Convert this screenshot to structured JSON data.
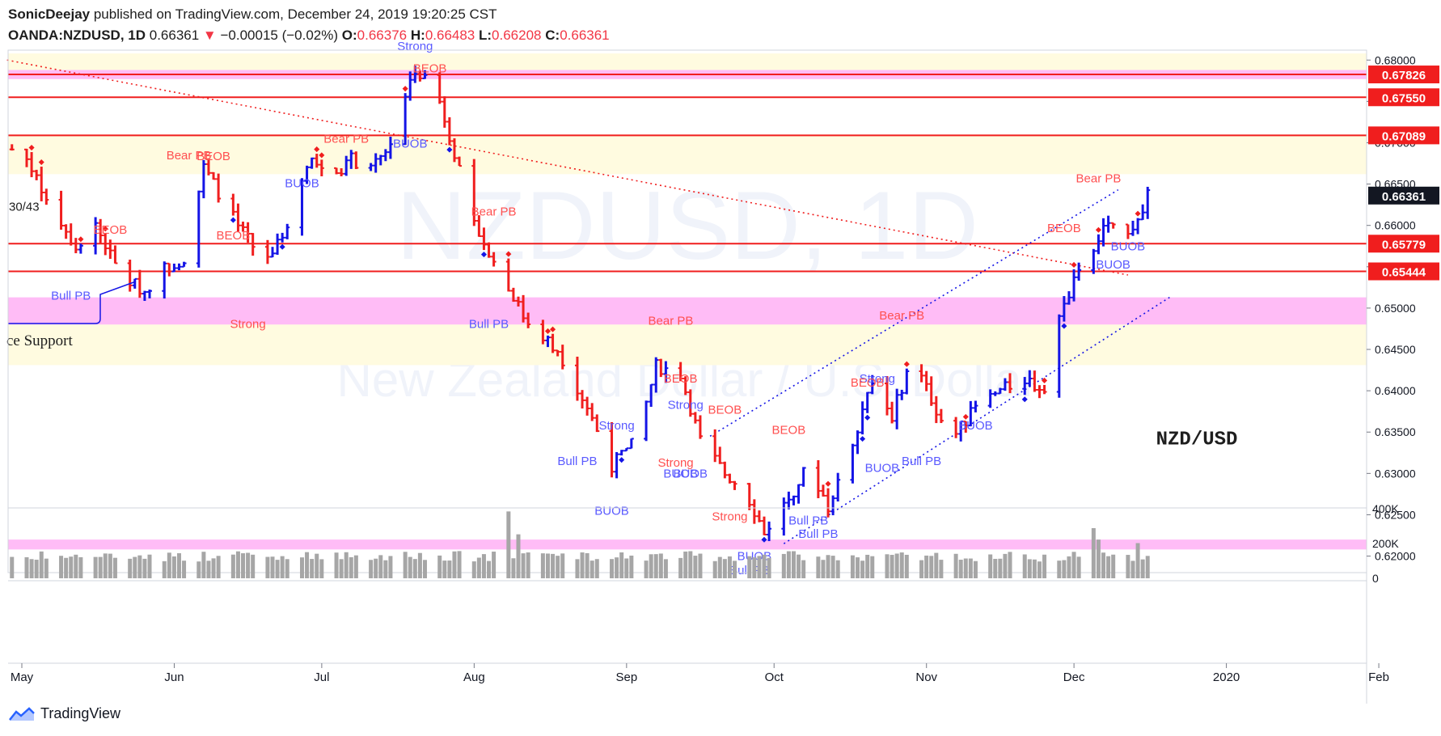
{
  "header": {
    "author": "SonicDeejay",
    "published_text": "published on TradingView.com, December 24, 2019 19:20:25 CST",
    "symbol": "OANDA:NZDUSD, 1D",
    "last": "0.66361",
    "change": "−0.00015 (−0.02%)",
    "o_label": "O:",
    "o_value": "0.66376",
    "h_label": "H:",
    "h_value": "0.66483",
    "l_label": "L:",
    "l_value": "0.66208",
    "c_label": "C:",
    "c_value": "0.66361"
  },
  "watermark": {
    "symbol": "NZDUSD, 1D",
    "name": "New Zealand Dollar / U.S. Dollar"
  },
  "footer": {
    "brand": "TradingView"
  },
  "colors": {
    "up": "#1414e6",
    "down": "#f01e1e",
    "hline": "#f01e1e",
    "pink_zone": "#ffb8f5",
    "yellow_zone": "#fffbe0"
  },
  "chart_data": {
    "type": "bar",
    "title": "NZD/USD",
    "price_range": [
      0.618,
      0.6812
    ],
    "price_ticks": [
      "0.68000",
      "0.67500",
      "0.67000",
      "0.66500",
      "0.66000",
      "0.65500",
      "0.65000",
      "0.64500",
      "0.64000",
      "0.63500",
      "0.63000",
      "0.62500",
      "0.62000"
    ],
    "time_labels": [
      {
        "label": "May",
        "day": 0
      },
      {
        "label": "Jun",
        "day": 31
      },
      {
        "label": "Jul",
        "day": 61
      },
      {
        "label": "Aug",
        "day": 92
      },
      {
        "label": "Sep",
        "day": 123
      },
      {
        "label": "Oct",
        "day": 153
      },
      {
        "label": "Nov",
        "day": 184
      },
      {
        "label": "Dec",
        "day": 214
      },
      {
        "label": "2020",
        "day": 245
      },
      {
        "label": "Feb",
        "day": 276
      }
    ],
    "level_lines": [
      {
        "price": 0.67826,
        "label": "0.67826"
      },
      {
        "price": 0.6755,
        "label": "0.67550"
      },
      {
        "price": 0.67089,
        "label": "0.67089"
      },
      {
        "price": 0.65779,
        "label": "0.65779"
      },
      {
        "price": 0.65444,
        "label": "0.65444"
      }
    ],
    "last_price": {
      "price": 0.66361,
      "label": "0.66361"
    },
    "zones": [
      {
        "type": "yellow",
        "from": 0.678,
        "to": 0.6808
      },
      {
        "type": "pink",
        "from": 0.6777,
        "to": 0.6788
      },
      {
        "type": "yellow",
        "from": 0.6662,
        "to": 0.671
      },
      {
        "type": "pink",
        "from": 0.648,
        "to": 0.6513
      },
      {
        "type": "yellow",
        "from": 0.6431,
        "to": 0.648
      },
      {
        "type": "pink",
        "from": 0.6208,
        "to": 0.622
      }
    ],
    "trend_lines": [
      {
        "from_day": -4,
        "from_price": 0.68,
        "to_day": 224,
        "to_price": 0.654,
        "color": "#f01e1e"
      },
      {
        "from_day": 139,
        "from_price": 0.6345,
        "to_day": 222,
        "to_price": 0.6643,
        "color": "#1414e6"
      },
      {
        "from_day": 154,
        "from_price": 0.6215,
        "to_day": 233,
        "to_price": 0.6515,
        "color": "#1414e6"
      }
    ],
    "markers": [
      {
        "text": "Strong",
        "day": 79,
        "price": 0.6812,
        "color": "#5a5aff"
      },
      {
        "text": "BEOB",
        "day": 82,
        "price": 0.6785,
        "color": "#ff5050"
      },
      {
        "text": "Bear PB",
        "day": 65,
        "price": 0.67,
        "color": "#ff5050"
      },
      {
        "text": "BUOB",
        "day": 78,
        "price": 0.6694,
        "color": "#5a5aff"
      },
      {
        "text": "Bear PB",
        "day": 33,
        "price": 0.668,
        "color": "#ff5050"
      },
      {
        "text": "BEOB",
        "day": 38,
        "price": 0.6679,
        "color": "#ff5050"
      },
      {
        "text": "BUOB",
        "day": 56,
        "price": 0.6646,
        "color": "#5a5aff"
      },
      {
        "text": "30/43",
        "day": 0,
        "price": 0.6618,
        "color": "#1e1e1e"
      },
      {
        "text": "BEOB",
        "day": 17,
        "price": 0.659,
        "color": "#ff5050"
      },
      {
        "text": "BEOB",
        "day": 42,
        "price": 0.6583,
        "color": "#ff5050"
      },
      {
        "text": "Bear PB",
        "day": 95,
        "price": 0.6612,
        "color": "#ff5050"
      },
      {
        "text": "Bull PB",
        "day": 9,
        "price": 0.651,
        "color": "#5a5aff"
      },
      {
        "text": "Strong",
        "day": 45,
        "price": 0.6476,
        "color": "#ff5050"
      },
      {
        "text": "Bull PB",
        "day": 94,
        "price": 0.6476,
        "color": "#5a5aff"
      },
      {
        "text": "ce Support",
        "day": 6,
        "price": 0.6455,
        "color": "#1e1e1e"
      },
      {
        "text": "Bear PB",
        "day": 131,
        "price": 0.648,
        "color": "#ff5050"
      },
      {
        "text": "Bear PB",
        "day": 178,
        "price": 0.6486,
        "color": "#ff5050"
      },
      {
        "text": "BEOB",
        "day": 133,
        "price": 0.641,
        "color": "#ff5050"
      },
      {
        "text": "Strong",
        "day": 173,
        "price": 0.641,
        "color": "#5a5aff"
      },
      {
        "text": "BEOB",
        "day": 171,
        "price": 0.6405,
        "color": "#ff5050"
      },
      {
        "text": "Strong",
        "day": 134,
        "price": 0.6378,
        "color": "#5a5aff"
      },
      {
        "text": "BEOB",
        "day": 142,
        "price": 0.6372,
        "color": "#ff5050"
      },
      {
        "text": "Strong",
        "day": 120,
        "price": 0.6353,
        "color": "#5a5aff"
      },
      {
        "text": "BEOB",
        "day": 155,
        "price": 0.6348,
        "color": "#ff5050"
      },
      {
        "text": "Bull PB",
        "day": 112,
        "price": 0.631,
        "color": "#5a5aff"
      },
      {
        "text": "BUOB",
        "day": 193,
        "price": 0.6353,
        "color": "#5a5aff"
      },
      {
        "text": "Bull PB",
        "day": 182,
        "price": 0.631,
        "color": "#5a5aff"
      },
      {
        "text": "BUOB",
        "day": 174,
        "price": 0.6302,
        "color": "#5a5aff"
      },
      {
        "text": "Strong",
        "day": 132,
        "price": 0.6308,
        "color": "#ff5050"
      },
      {
        "text": "BUOB",
        "day": 133,
        "price": 0.6295,
        "color": "#5a5aff"
      },
      {
        "text": "BUOB",
        "day": 135,
        "price": 0.6295,
        "color": "#5a5aff"
      },
      {
        "text": "BUOB",
        "day": 119,
        "price": 0.625,
        "color": "#5a5aff"
      },
      {
        "text": "Strong",
        "day": 143,
        "price": 0.6243,
        "color": "#ff5050"
      },
      {
        "text": "Bull PB",
        "day": 159,
        "price": 0.6238,
        "color": "#5a5aff"
      },
      {
        "text": "Bull PB",
        "day": 161,
        "price": 0.6222,
        "color": "#5a5aff"
      },
      {
        "text": "BUOB",
        "day": 148,
        "price": 0.6195,
        "color": "#5a5aff"
      },
      {
        "text": "Bull PB",
        "day": 147,
        "price": 0.6178,
        "color": "#5a5aff"
      },
      {
        "text": "BEOB",
        "day": 211,
        "price": 0.6592,
        "color": "#ff5050"
      },
      {
        "text": "Bear PB",
        "day": 218,
        "price": 0.6652,
        "color": "#ff5050"
      },
      {
        "text": "BUOB",
        "day": 224,
        "price": 0.657,
        "color": "#5a5aff"
      },
      {
        "text": "BUOB",
        "day": 221,
        "price": 0.6548,
        "color": "#5a5aff"
      },
      {
        "text": "NZD/USD",
        "day": 238,
        "price": 0.6335,
        "color": "#1e1e1e"
      }
    ],
    "volume_ticks": [
      "400K",
      "200K",
      "0"
    ],
    "volume_max": 400000
  }
}
